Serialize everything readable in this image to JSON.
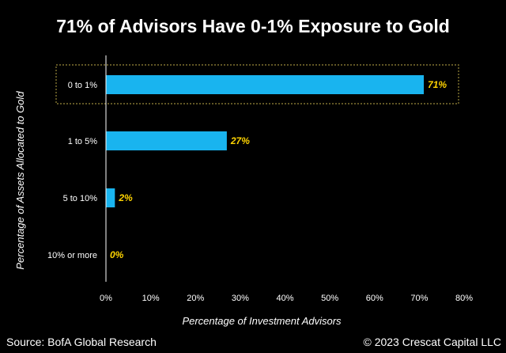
{
  "chart_data": {
    "type": "bar",
    "orientation": "horizontal",
    "title": "71% of Advisors Have 0-1% Exposure to Gold",
    "xlabel": "Percentage of Investment Advisors",
    "ylabel": "Percentage of Assets Allocated to Gold",
    "categories": [
      "0 to 1%",
      "1 to 5%",
      "5 to 10%",
      "10% or more"
    ],
    "values": [
      71,
      27,
      2,
      0
    ],
    "value_labels": [
      "71%",
      "27%",
      "2%",
      "0%"
    ],
    "xlim": [
      0,
      80
    ],
    "xticks": [
      0,
      10,
      20,
      30,
      40,
      50,
      60,
      70,
      80
    ],
    "xtick_labels": [
      "0%",
      "10%",
      "20%",
      "30%",
      "40%",
      "50%",
      "60%",
      "70%",
      "80%"
    ],
    "grid": false,
    "highlight_category": "0 to 1%",
    "colors": {
      "bar": "#19b4ef",
      "data_label": "#ffd400",
      "highlight_border": "#9a8a3a",
      "background": "#000000",
      "axis": "#ffffff"
    }
  },
  "footer": {
    "source": "Source: BofA Global Research",
    "copyright": "© 2023 Crescat Capital LLC"
  }
}
